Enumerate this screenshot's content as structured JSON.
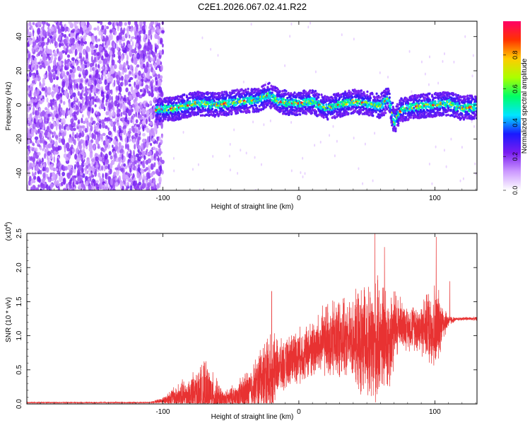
{
  "title": "C2E1.2026.067.02.41.R22",
  "chart_data": [
    {
      "type": "heatmap",
      "title": "C2E1.2026.067.02.41.R22",
      "xlabel": "Height of straight line (km)",
      "ylabel": "Frequency (Hz)",
      "xlim": [
        -200,
        131
      ],
      "ylim": [
        -50,
        49
      ],
      "x_ticks": [
        -100,
        0,
        100
      ],
      "y_ticks": [
        -40,
        -20,
        0,
        20,
        40
      ],
      "colorbar": {
        "label": "Normalized spectral amplitude",
        "range": [
          0,
          1
        ],
        "ticks": [
          "0.0",
          "0.2",
          "0.4",
          "0.6",
          "0.8"
        ],
        "tick_values": [
          0,
          0.2,
          0.4,
          0.6,
          0.8
        ],
        "colors": [
          "#ffffff",
          "#cc99ff",
          "#7a1cf0",
          "#1a1aff",
          "#00e5ff",
          "#00ff66",
          "#aaff00",
          "#ffcc00",
          "#ff3300",
          "#ff0066"
        ]
      },
      "ridge": {
        "x": [
          -105,
          -90,
          -75,
          -60,
          -45,
          -30,
          -22,
          -15,
          -5,
          0,
          10,
          20,
          30,
          40,
          50,
          60,
          66,
          70,
          75,
          85,
          100,
          110,
          120,
          131
        ],
        "freq": [
          -3,
          -2,
          1,
          0,
          2,
          3,
          6,
          2,
          1,
          1,
          2,
          -2,
          0,
          2,
          1,
          -1,
          4,
          -10,
          -3,
          -1,
          0,
          1,
          -2,
          -1
        ]
      },
      "noise_region_x": [
        -200,
        -100
      ]
    },
    {
      "type": "line",
      "xlabel": "Height of straight line (km)",
      "ylabel": "SNR (10 * v/v)",
      "scale_label": "(x10",
      "scale_exp": "4",
      "scale_close": ")",
      "xlim": [
        -200,
        131
      ],
      "ylim": [
        0,
        2.5
      ],
      "x_ticks": [
        -100,
        0,
        100
      ],
      "y_ticks": [
        "0.0",
        "0.5",
        "1.0",
        "1.5",
        "2.0",
        "2.5"
      ],
      "y_tick_values": [
        0,
        0.5,
        1,
        1.5,
        2,
        2.5
      ],
      "color": "#e83232",
      "envelope": {
        "x": [
          -200,
          -110,
          -100,
          -95,
          -88,
          -80,
          -75,
          -70,
          -65,
          -60,
          -55,
          -50,
          -45,
          -40,
          -35,
          -30,
          -25,
          -20,
          -15,
          -10,
          -5,
          0,
          5,
          10,
          15,
          20,
          25,
          30,
          35,
          40,
          45,
          50,
          55,
          60,
          65,
          70,
          75,
          80,
          85,
          90,
          95,
          100,
          105,
          110,
          115,
          120,
          131
        ],
        "base": [
          0.02,
          0.02,
          0.05,
          0.08,
          0.1,
          0.12,
          0.15,
          0.18,
          0.12,
          0.08,
          0.05,
          0.08,
          0.1,
          0.15,
          0.2,
          0.3,
          0.45,
          0.4,
          0.55,
          0.55,
          0.7,
          0.7,
          0.75,
          0.8,
          0.85,
          0.95,
          0.9,
          1.0,
          0.9,
          0.95,
          0.9,
          0.85,
          0.8,
          1.0,
          0.9,
          1.1,
          1.2,
          1.1,
          1.15,
          1.1,
          1.15,
          1.1,
          1.2,
          1.22,
          1.24,
          1.25,
          1.25
        ],
        "amp": [
          0.01,
          0.01,
          0.05,
          0.15,
          0.25,
          0.35,
          0.4,
          0.5,
          0.45,
          0.3,
          0.15,
          0.2,
          0.25,
          0.35,
          0.4,
          0.5,
          0.65,
          0.7,
          0.45,
          0.4,
          0.45,
          0.45,
          0.45,
          0.5,
          0.55,
          0.6,
          0.7,
          0.7,
          0.6,
          0.7,
          0.9,
          1.0,
          1.1,
          0.95,
          0.9,
          0.7,
          0.4,
          0.35,
          0.4,
          0.45,
          0.6,
          0.8,
          0.4,
          0.1,
          0.03,
          0.03,
          0.03
        ]
      },
      "peaks": [
        {
          "x": -20,
          "y": 1.65
        },
        {
          "x": 56,
          "y": 2.5
        },
        {
          "x": 63,
          "y": 2.3
        },
        {
          "x": 101,
          "y": 2.45
        },
        {
          "x": 111,
          "y": 1.8
        }
      ]
    }
  ]
}
